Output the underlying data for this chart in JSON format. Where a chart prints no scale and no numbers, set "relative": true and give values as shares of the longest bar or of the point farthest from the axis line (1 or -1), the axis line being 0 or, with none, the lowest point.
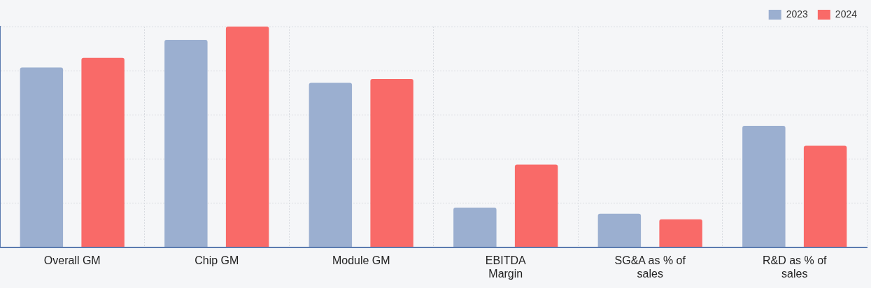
{
  "chart_data": {
    "type": "bar",
    "relative": true,
    "categories": [
      "Overall GM",
      "Chip GM",
      "Module GM",
      "EBITDA Margin",
      "SG&A as % of sales",
      "R&D as % of sales"
    ],
    "series": [
      {
        "name": "2023",
        "color": "#9bafd0",
        "values": [
          0.815,
          0.94,
          0.745,
          0.179,
          0.152,
          0.55
        ]
      },
      {
        "name": "2024",
        "color": "#f96a68",
        "values": [
          0.858,
          1,
          0.762,
          0.374,
          0.126,
          0.46
        ]
      }
    ],
    "grid": true,
    "legend": "top right"
  }
}
